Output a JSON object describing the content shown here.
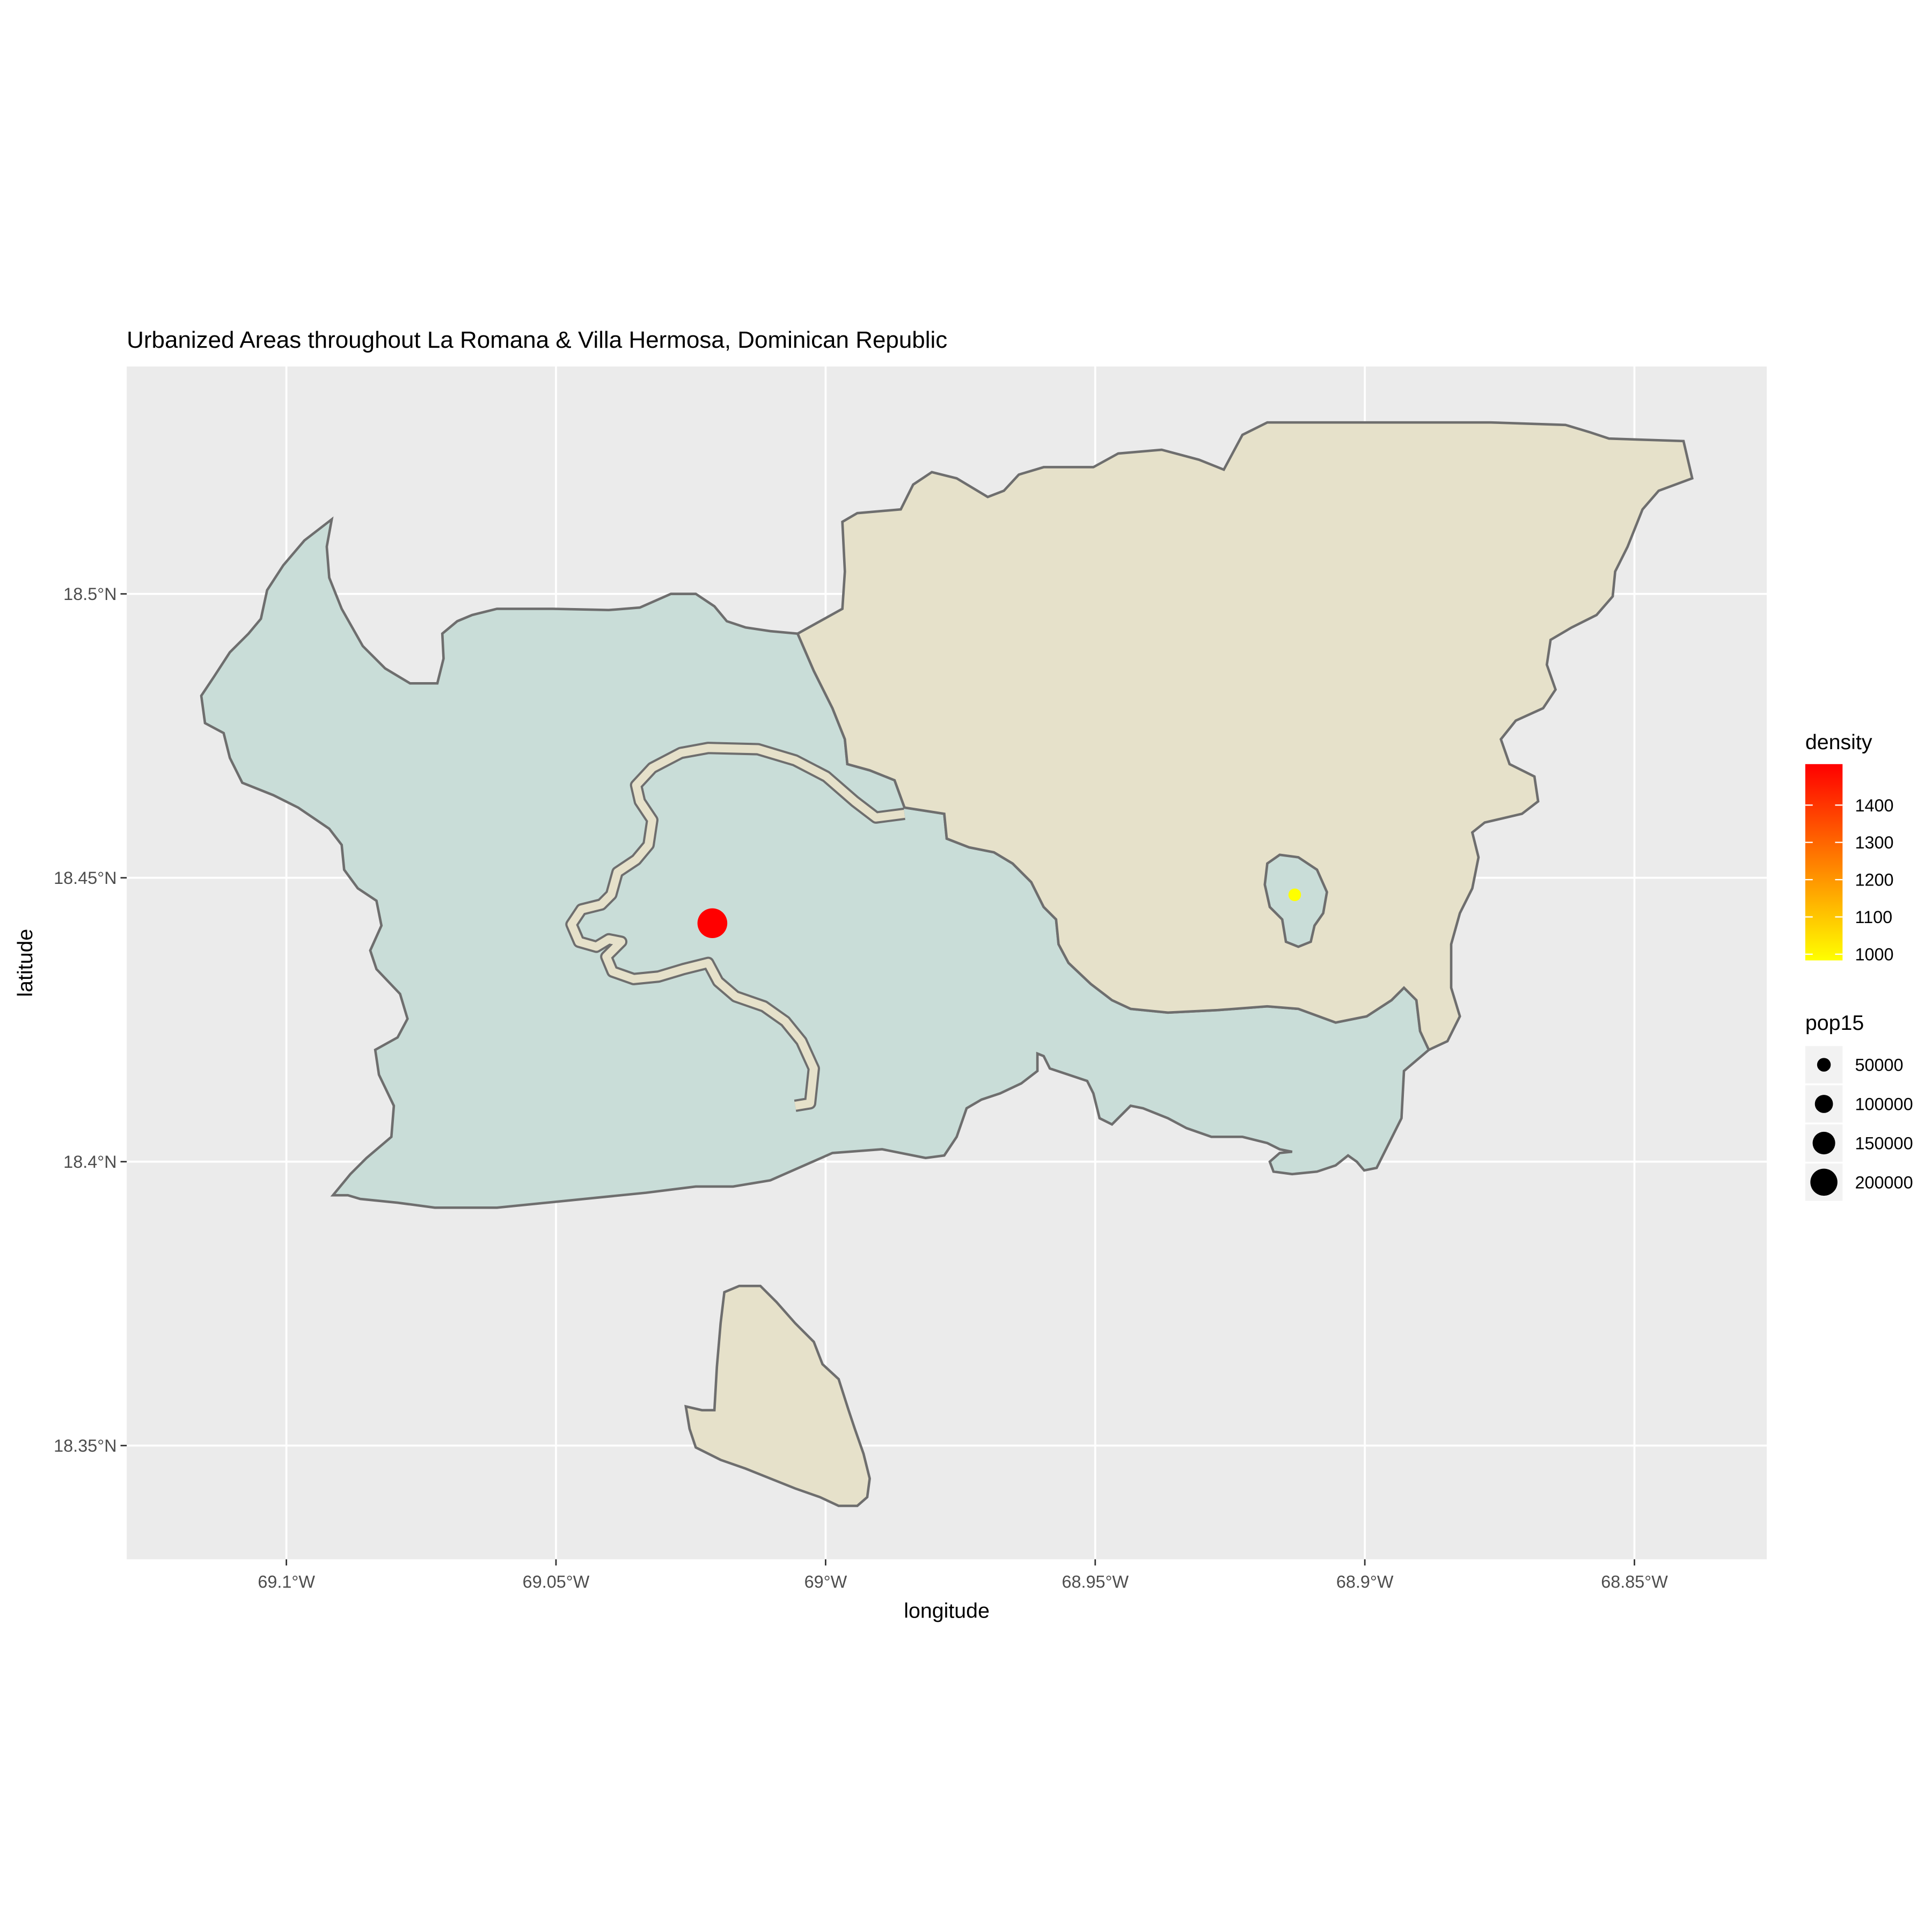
{
  "title": "Urbanized Areas throughout La Romana & Villa Hermosa, Dominican Republic",
  "x_axis": {
    "label": "longitude",
    "ticks": [
      {
        "value": -69.1,
        "label": "69.1°W"
      },
      {
        "value": -69.05,
        "label": "69.05°W"
      },
      {
        "value": -69.0,
        "label": "69°W"
      },
      {
        "value": -68.95,
        "label": "68.95°W"
      },
      {
        "value": -68.9,
        "label": "68.9°W"
      },
      {
        "value": -68.85,
        "label": "68.85°W"
      }
    ]
  },
  "y_axis": {
    "label": "latitude",
    "ticks": [
      {
        "value": 18.35,
        "label": "18.35°N"
      },
      {
        "value": 18.4,
        "label": "18.4°N"
      },
      {
        "value": 18.45,
        "label": "18.45°N"
      },
      {
        "value": 18.5,
        "label": "18.5°N"
      }
    ]
  },
  "legend_density": {
    "title": "density",
    "ticks": [
      {
        "value": 1000,
        "label": "1000"
      },
      {
        "value": 1100,
        "label": "1100"
      },
      {
        "value": 1200,
        "label": "1200"
      },
      {
        "value": 1300,
        "label": "1300"
      },
      {
        "value": 1400,
        "label": "1400"
      }
    ],
    "low_color": "#FFFF00",
    "high_color": "#FF0000"
  },
  "legend_pop": {
    "title": "pop15",
    "entries": [
      {
        "value": 50000,
        "label": "50000"
      },
      {
        "value": 100000,
        "label": "100000"
      },
      {
        "value": 150000,
        "label": "150000"
      },
      {
        "value": 200000,
        "label": "200000"
      }
    ]
  },
  "colors": {
    "panel_background": "#EBEBEB",
    "gridline": "#FFFFFF",
    "region_la_romana": "#C9DDD8",
    "region_villa_hermosa": "#E6E1CA",
    "region_border": "#6E6E6E"
  },
  "chart_data": {
    "type": "map",
    "xlim": [
      -69.13,
      -68.83
    ],
    "ylim": [
      18.33,
      18.54
    ],
    "points": [
      {
        "lon": -69.021,
        "lat": 18.442,
        "density": 1500,
        "pop15": 210000
      },
      {
        "lon": -68.913,
        "lat": 18.447,
        "density": 1000,
        "pop15": 20000
      }
    ]
  }
}
